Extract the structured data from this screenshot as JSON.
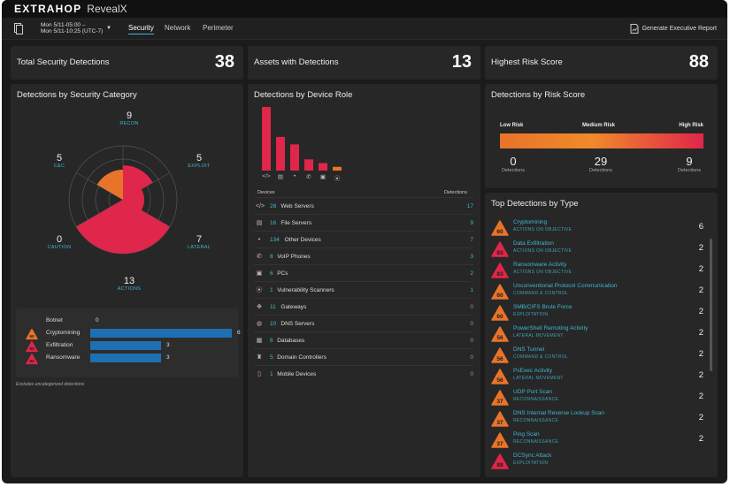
{
  "app": {
    "logo": "EXTRAHOP",
    "product": "RevealX"
  },
  "nav": {
    "date_line1": "Mon 5/11-05:00 –",
    "date_line2": "Mon 5/11-10:25 (UTC-7)",
    "tabs": [
      {
        "label": "Security",
        "active": true
      },
      {
        "label": "Network",
        "active": false
      },
      {
        "label": "Perimeter",
        "active": false
      }
    ],
    "report_label": "Generate Executive Report"
  },
  "stats": [
    {
      "label": "Total Security Detections",
      "value": "38"
    },
    {
      "label": "Assets with Detections",
      "value": "13"
    },
    {
      "label": "Highest Risk Score",
      "value": "88"
    }
  ],
  "categories": {
    "title": "Detections by Security Category",
    "radar": [
      {
        "count": "9",
        "name": "RECON"
      },
      {
        "count": "5",
        "name": "EXPLOIT"
      },
      {
        "count": "7",
        "name": "LATERAL"
      },
      {
        "count": "13",
        "name": "ACTIONS"
      },
      {
        "count": "0",
        "name": "CAUTION"
      },
      {
        "count": "5",
        "name": "C&C"
      }
    ],
    "legend": [
      {
        "label": "Botnet",
        "value": "0",
        "fraction": 0,
        "badge": ""
      },
      {
        "label": "Cryptomining",
        "value": "6",
        "fraction": 1.0,
        "badge": "60"
      },
      {
        "label": "Exfiltration",
        "value": "3",
        "fraction": 0.5,
        "badge": "83"
      },
      {
        "label": "Ransomware",
        "value": "3",
        "fraction": 0.5,
        "badge": "83"
      }
    ],
    "footnote": "Excludes uncategorized detections"
  },
  "device_roles": {
    "title": "Detections by Device Role",
    "chart_data": {
      "type": "bar",
      "categories": [
        "Web Servers",
        "File Servers",
        "Other Devices",
        "VoIP Phones",
        "PCs",
        "Vulnerability Scanners"
      ],
      "values": [
        17,
        9,
        7,
        3,
        2,
        1
      ]
    },
    "col_devices": "Devices",
    "col_detections": "Detections",
    "rows": [
      {
        "icon": "code-icon",
        "glyph": "</>",
        "count": "26",
        "name": "Web Servers",
        "detections": "17"
      },
      {
        "icon": "file-icon",
        "glyph": "▤",
        "count": "16",
        "name": "File Servers",
        "detections": "9"
      },
      {
        "icon": "dot-icon",
        "glyph": "•",
        "count": "134",
        "name": "Other Devices",
        "detections": "7"
      },
      {
        "icon": "phone-icon",
        "glyph": "✆",
        "count": "8",
        "name": "VoIP Phones",
        "detections": "3"
      },
      {
        "icon": "pc-icon",
        "glyph": "▣",
        "count": "6",
        "name": "PCs",
        "detections": "2"
      },
      {
        "icon": "scanner-icon",
        "glyph": "⦿",
        "count": "1",
        "name": "Vulnerability Scanners",
        "detections": "1"
      },
      {
        "icon": "gateway-icon",
        "glyph": "✥",
        "count": "11",
        "name": "Gateways",
        "detections": "0"
      },
      {
        "icon": "dns-icon",
        "glyph": "◍",
        "count": "10",
        "name": "DNS Servers",
        "detections": "0"
      },
      {
        "icon": "database-icon",
        "glyph": "▦",
        "count": "6",
        "name": "Databases",
        "detections": "0"
      },
      {
        "icon": "domain-controller-icon",
        "glyph": "♜",
        "count": "5",
        "name": "Domain Controllers",
        "detections": "0"
      },
      {
        "icon": "mobile-icon",
        "glyph": "▯",
        "count": "1",
        "name": "Mobile Devices",
        "detections": "0"
      }
    ]
  },
  "risk": {
    "title": "Detections by Risk Score",
    "low_label": "Low Risk",
    "medium_label": "Medium Risk",
    "high_label": "High Risk",
    "low": "0",
    "medium": "29",
    "high": "9",
    "unit": "Detections",
    "colors": {
      "low": "#e8742a",
      "mid": "#f08a2a",
      "high": "#e0264a"
    }
  },
  "top_detections": {
    "title": "Top Detections by Type",
    "items": [
      {
        "name": "Cryptomining",
        "category": "ACTIONS ON OBJECTIVE",
        "score": "60",
        "count": "6"
      },
      {
        "name": "Data Exfiltration",
        "category": "ACTIONS ON OBJECTIVE",
        "score": "83",
        "count": "2"
      },
      {
        "name": "Ransomware Activity",
        "category": "ACTIONS ON OBJECTIVE",
        "score": "83",
        "count": "2"
      },
      {
        "name": "Unconventional Protocol Communication",
        "category": "COMMAND & CONTROL",
        "score": "60",
        "count": "2"
      },
      {
        "name": "SMB/CIFS Brute Force",
        "category": "EXPLOITATION",
        "score": "60",
        "count": "2"
      },
      {
        "name": "PowerShell Remoting Activity",
        "category": "LATERAL MOVEMENT",
        "score": "56",
        "count": "2"
      },
      {
        "name": "DNS Tunnel",
        "category": "COMMAND & CONTROL",
        "score": "56",
        "count": "2"
      },
      {
        "name": "PsExec Activity",
        "category": "LATERAL MOVEMENT",
        "score": "56",
        "count": "2"
      },
      {
        "name": "UDP Port Scan",
        "category": "RECONNAISSANCE",
        "score": "37",
        "count": "2"
      },
      {
        "name": "DNS Internal Reverse Lookup Scan",
        "category": "RECONNAISSANCE",
        "score": "37",
        "count": "2"
      },
      {
        "name": "Ping Scan",
        "category": "RECONNAISSANCE",
        "score": "37",
        "count": "2"
      },
      {
        "name": "DCSync Attack",
        "category": "EXPLOITATION",
        "score": "88",
        "count": ""
      }
    ]
  }
}
